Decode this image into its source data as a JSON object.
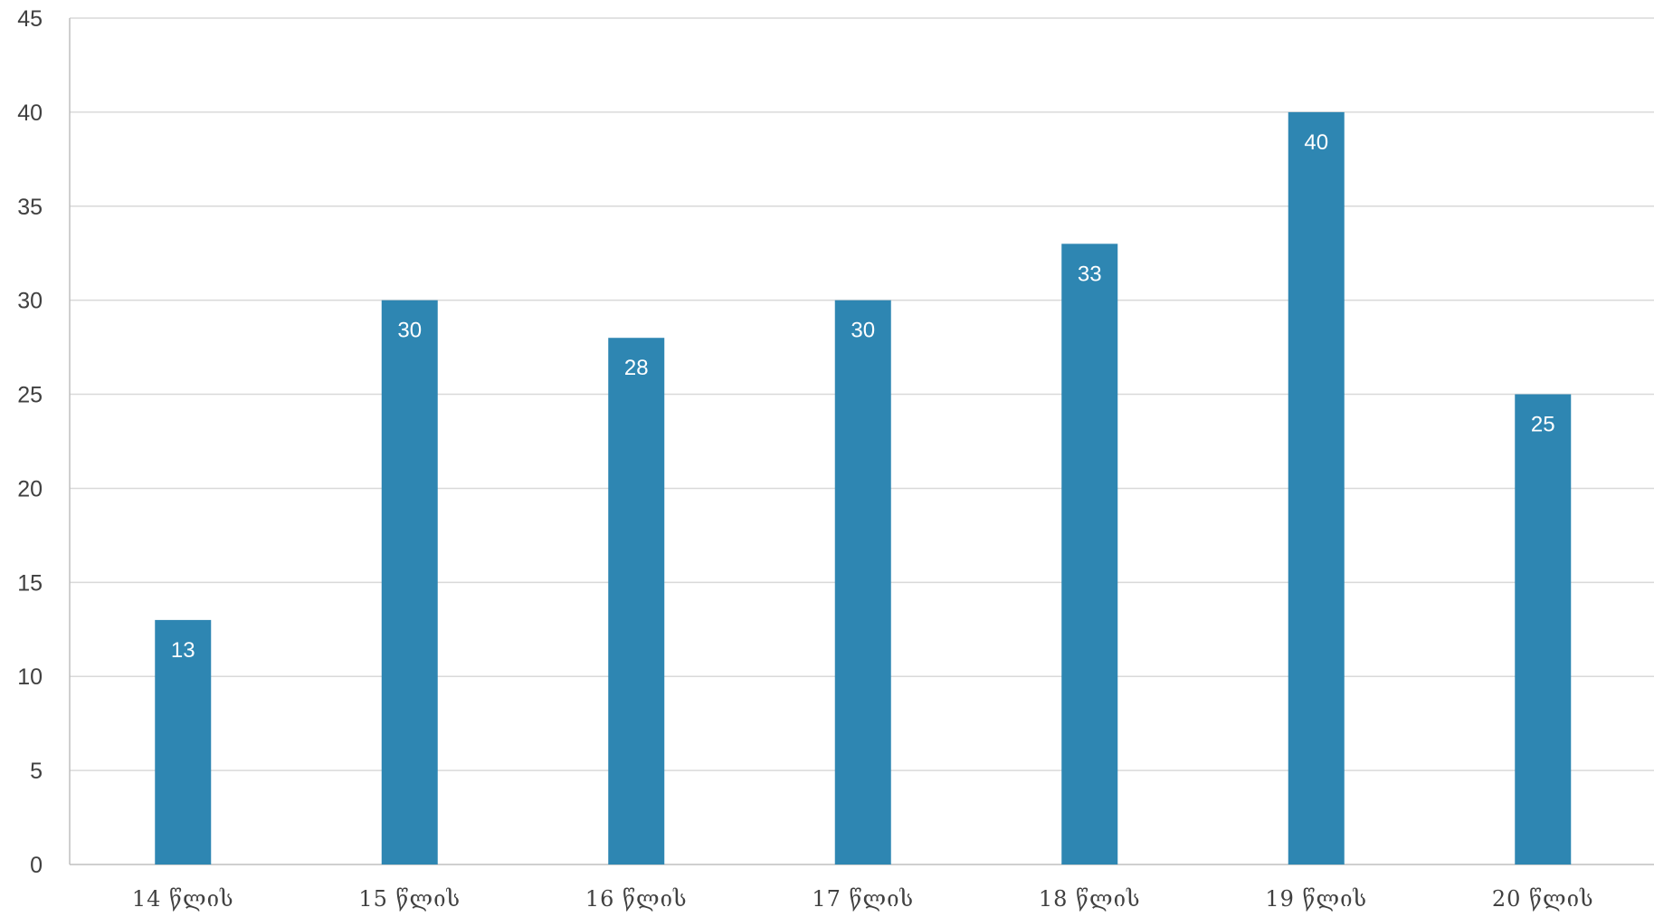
{
  "chart_data": {
    "type": "bar",
    "categories": [
      "14 წლის",
      "15 წლის",
      "16 წლის",
      "17 წლის",
      "18 წლის",
      "19 წლის",
      "20 წლის"
    ],
    "values": [
      13,
      30,
      28,
      30,
      33,
      40,
      25
    ],
    "ylim": [
      0,
      45
    ],
    "yticks": [
      0,
      5,
      10,
      15,
      20,
      25,
      30,
      35,
      40,
      45
    ],
    "grid": true,
    "data_labels": true,
    "colors": {
      "bar": "#2e86b2",
      "grid": "#d9d9d9",
      "axis_text": "#404040",
      "label_text": "#ffffff"
    }
  }
}
